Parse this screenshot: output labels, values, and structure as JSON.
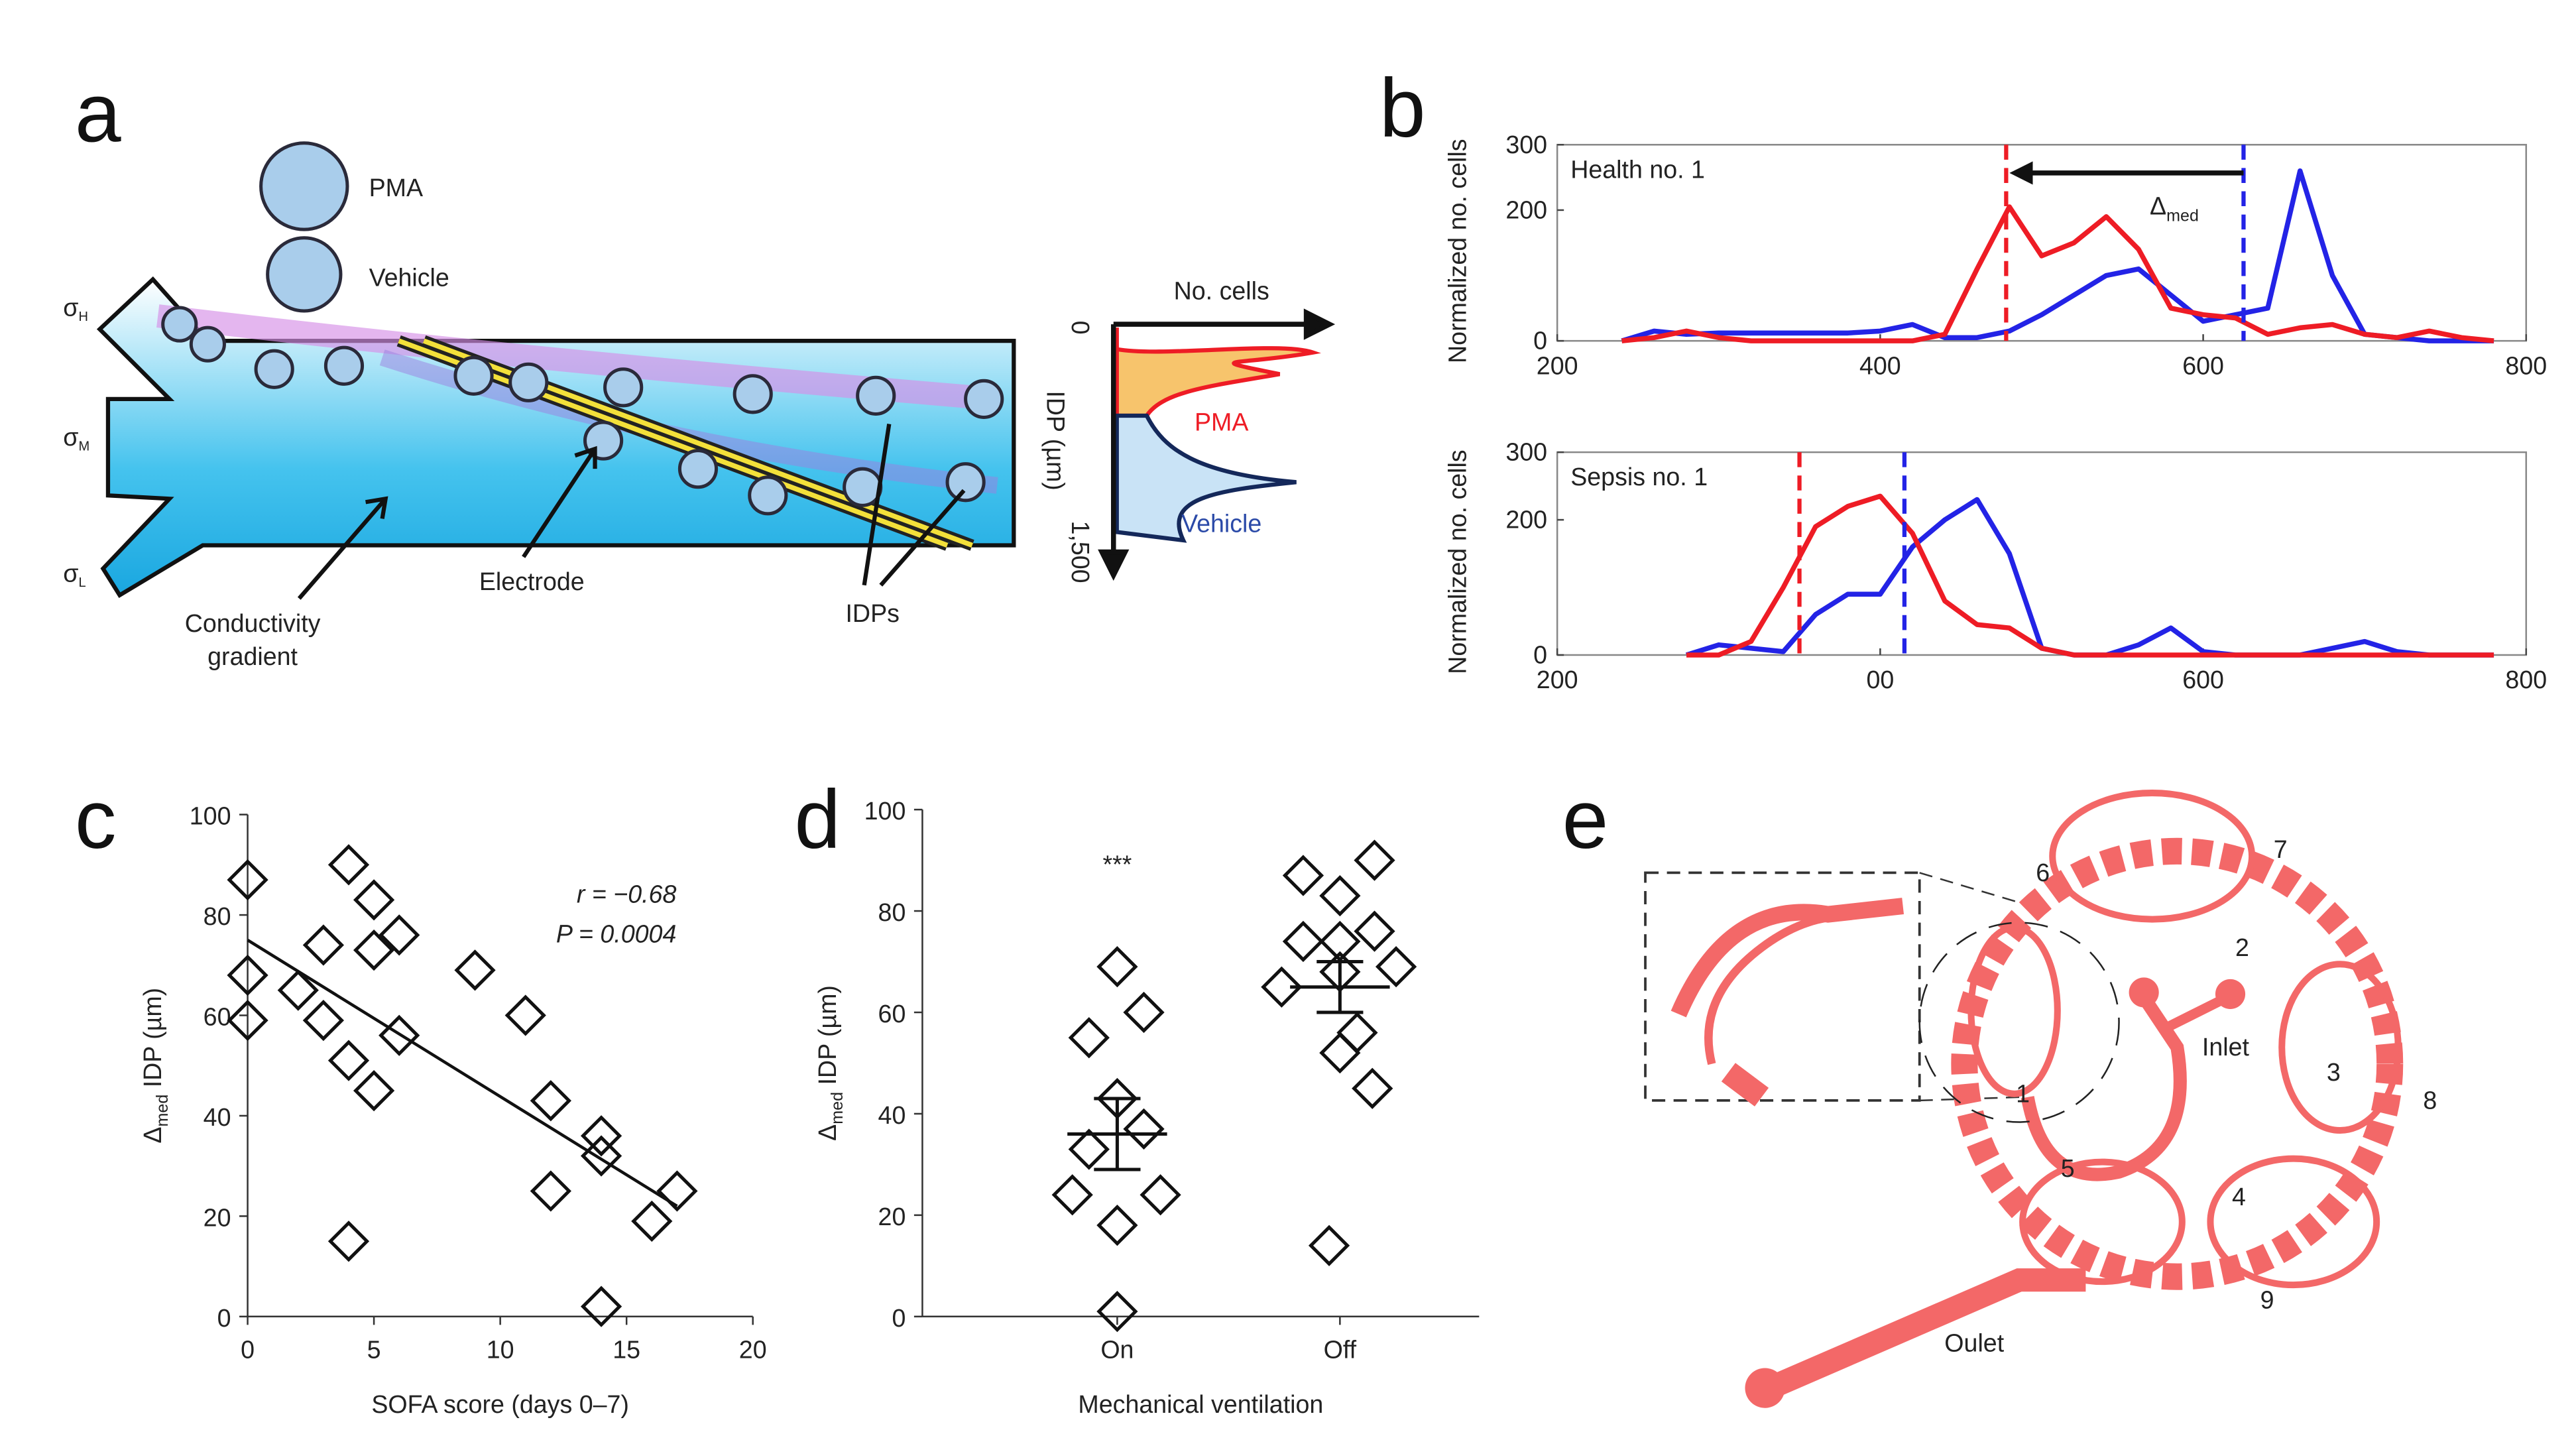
{
  "panel_labels": [
    "a",
    "b",
    "c",
    "d",
    "e"
  ],
  "panel_a": {
    "pma": "PMA",
    "vehicle": "Vehicle",
    "sigma_labels": [
      [
        "σ",
        "H"
      ],
      [
        "σ",
        "M"
      ],
      [
        "σ",
        "L"
      ]
    ],
    "conductivity_label": [
      "Conductivity",
      "gradient"
    ],
    "electrode": "Electrode",
    "idps": "IDPs",
    "hist_axis": "No. cells",
    "hist_zero": "0",
    "hist_ylabel": "IDP (µm)",
    "hist_end": "1,500",
    "hist_pma": "PMA",
    "hist_vehicle": "Vehicle"
  },
  "panel_e": {
    "labels": [
      "6",
      "7",
      "2",
      "3",
      "8",
      "1",
      "5",
      "4",
      "9"
    ],
    "inlet": "Inlet",
    "outlet": "Oulet"
  },
  "chart_data": [
    {
      "type": "line",
      "annotation": "Health no. 1",
      "delta_label": [
        "Δ",
        "med"
      ],
      "ylabel": "Normalized no. cells",
      "x": [
        240,
        260,
        280,
        300,
        320,
        340,
        360,
        380,
        400,
        420,
        440,
        460,
        480,
        500,
        520,
        540,
        560,
        580,
        600,
        620,
        640,
        660,
        680,
        700,
        720,
        740,
        760,
        780
      ],
      "series": [
        {
          "color": "#2323e6",
          "values": [
            0,
            15,
            10,
            12,
            12,
            12,
            12,
            12,
            15,
            25,
            5,
            5,
            15,
            40,
            70,
            100,
            110,
            70,
            30,
            40,
            50,
            260,
            100,
            10,
            5,
            0,
            0,
            0
          ]
        },
        {
          "color": "#ee1c25",
          "values": [
            0,
            5,
            15,
            5,
            0,
            0,
            0,
            0,
            0,
            0,
            10,
            110,
            205,
            130,
            150,
            190,
            140,
            50,
            40,
            35,
            10,
            20,
            25,
            10,
            5,
            15,
            5,
            0
          ]
        }
      ],
      "vlines": [
        {
          "value": 478,
          "color": "#ee1c25"
        },
        {
          "value": 625,
          "color": "#2323e6"
        }
      ],
      "xlim": [
        200,
        800
      ],
      "xticks": [
        200,
        400,
        600,
        800
      ],
      "ylim": [
        0,
        300
      ],
      "yticks": [
        0,
        200,
        300
      ]
    },
    {
      "type": "line",
      "annotation": "Sepsis no. 1",
      "ylabel": "Normalized no. cells",
      "x": [
        280,
        300,
        320,
        340,
        360,
        380,
        400,
        420,
        440,
        460,
        480,
        500,
        520,
        540,
        560,
        580,
        600,
        620,
        640,
        660,
        680,
        700,
        720,
        740,
        760,
        780
      ],
      "series": [
        {
          "color": "#2323e6",
          "values": [
            0,
            15,
            10,
            5,
            60,
            90,
            90,
            160,
            200,
            230,
            150,
            10,
            0,
            0,
            15,
            40,
            5,
            0,
            0,
            0,
            10,
            20,
            5,
            0,
            0,
            0
          ]
        },
        {
          "color": "#ee1c25",
          "values": [
            0,
            0,
            20,
            100,
            190,
            220,
            235,
            180,
            80,
            45,
            40,
            10,
            0,
            0,
            0,
            0,
            0,
            0,
            0,
            0,
            0,
            0,
            0,
            0,
            0,
            0
          ]
        }
      ],
      "vlines": [
        {
          "value": 350,
          "color": "#ee1c25"
        },
        {
          "value": 415,
          "color": "#2323e6"
        }
      ],
      "xlim": [
        200,
        800
      ],
      "xticks": [
        200,
        {
          "value": 400,
          "label": "00"
        },
        600,
        800
      ],
      "ylim": [
        0,
        300
      ],
      "yticks": [
        0,
        200,
        300
      ]
    },
    {
      "type": "scatter",
      "xlabel": "SOFA score (days 0–7)",
      "ylabel": [
        "Δ",
        "med",
        " IDP (µm)"
      ],
      "annotations": [
        "r = −0.68",
        "P = 0.0004"
      ],
      "x": [
        0,
        0,
        0,
        2,
        3,
        3,
        4,
        4,
        4,
        5,
        5,
        5,
        6,
        6,
        9,
        11,
        12,
        12,
        14,
        14,
        14,
        16,
        17
      ],
      "y": [
        87,
        68,
        59,
        65,
        74,
        59,
        90,
        51,
        15,
        83,
        73,
        45,
        76,
        56,
        69,
        60,
        43,
        25,
        36,
        32,
        2,
        19,
        25
      ],
      "fit": {
        "x": [
          0,
          17
        ],
        "y": [
          75,
          22
        ]
      },
      "xlim": [
        0,
        20
      ],
      "xticks": [
        0,
        5,
        10,
        15,
        20
      ],
      "ylim": [
        0,
        100
      ],
      "yticks": [
        0,
        20,
        40,
        60,
        80,
        100
      ]
    },
    {
      "type": "strip",
      "xlabel": "Mechanical ventilation",
      "ylabel": [
        "Δ",
        "med",
        " IDP (µm)"
      ],
      "annotation": "***",
      "categories": [
        "On",
        "Off"
      ],
      "groups": [
        {
          "values": [
            69,
            55,
            60,
            43,
            33,
            37,
            24,
            24,
            18,
            1
          ],
          "mean": 36,
          "error": 7
        },
        {
          "values": [
            83,
            87,
            90,
            74,
            74,
            76,
            65,
            69,
            68,
            52,
            56,
            45,
            14
          ],
          "mean": 65,
          "error": 5
        }
      ],
      "ylim": [
        0,
        100
      ],
      "yticks": [
        0,
        20,
        40,
        60,
        80,
        100
      ]
    }
  ]
}
